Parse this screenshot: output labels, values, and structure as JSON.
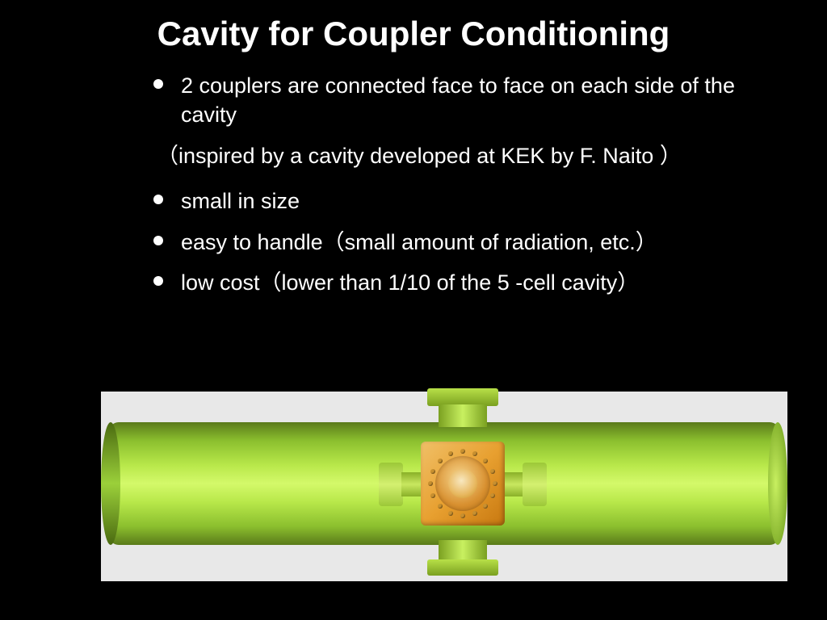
{
  "slide": {
    "title": "Cavity for Coupler Conditioning",
    "background_color": "#000000",
    "text_color": "#ffffff",
    "title_fontsize": 42,
    "body_fontsize": 27,
    "bullets": [
      "2 couplers are connected face to face on each side of the cavity",
      "small in size",
      "easy to handle（small amount of radiation, etc.）",
      "low cost（lower than 1/10 of the 5 -cell cavity）"
    ],
    "sub_note": "（inspired by a cavity developed at KEK by F. Naito ）"
  },
  "diagram": {
    "type": "infographic",
    "description": "3D render of a horizontal cylindrical cavity with a central orange cubic coupler block, top and bottom green flange ports, and left/right small flange stubs",
    "background_color": "#e8e8e8",
    "cylinder_color_gradient": [
      "#5a7a1a",
      "#8bbf2e",
      "#d4f96a",
      "#8bbf2e",
      "#5a7a1a"
    ],
    "center_block_color_gradient": [
      "#f0c068",
      "#e8a030",
      "#c87810"
    ],
    "flange_color_gradient": [
      "#b8e048",
      "#7aa020"
    ],
    "bolt_color": "#c89030",
    "bolt_count": 16,
    "aspect_w": 850,
    "aspect_h": 235
  }
}
